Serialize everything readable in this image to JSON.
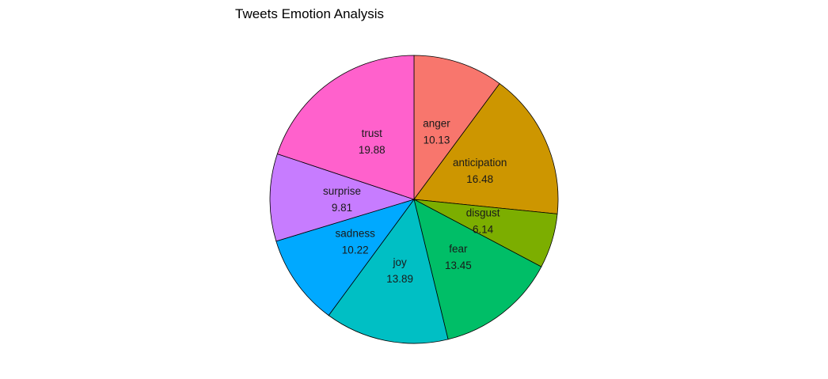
{
  "chart_data": {
    "type": "pie",
    "title": "Tweets Emotion Analysis",
    "slices": [
      {
        "label": "anger",
        "value": 10.13,
        "display": "10.13",
        "color": "#F8766D"
      },
      {
        "label": "anticipation",
        "value": 16.48,
        "display": "16.48",
        "color": "#CD9600"
      },
      {
        "label": "disgust",
        "value": 6.14,
        "display": "6.14",
        "color": "#7CAE00"
      },
      {
        "label": "fear",
        "value": 13.45,
        "display": "13.45",
        "color": "#00BE67"
      },
      {
        "label": "joy",
        "value": 13.89,
        "display": "13.89",
        "color": "#00BFC4"
      },
      {
        "label": "sadness",
        "value": 10.22,
        "display": "10.22",
        "color": "#00A9FF"
      },
      {
        "label": "surprise",
        "value": 9.81,
        "display": "9.81",
        "color": "#C77CFF"
      },
      {
        "label": "trust",
        "value": 19.88,
        "display": "19.88",
        "color": "#FF61CC"
      }
    ],
    "start_angle": "12 o'clock",
    "direction": "clockwise"
  }
}
